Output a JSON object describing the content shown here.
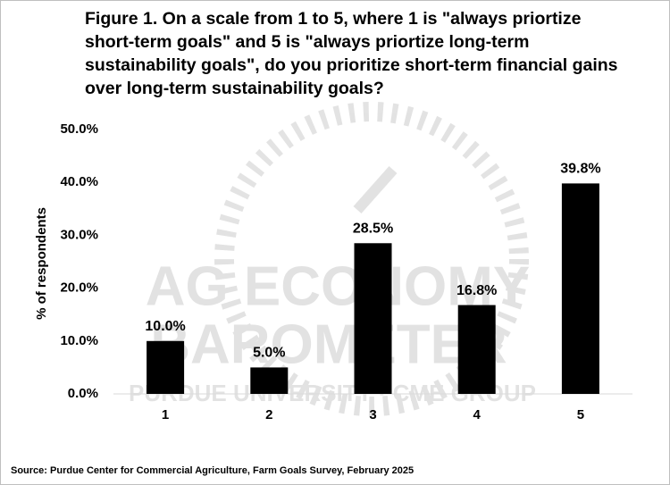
{
  "chart_data": {
    "type": "bar",
    "title": [
      "Figure 1. On a scale from 1 to 5, where 1 is \"always priortize",
      "short-term goals\" and 5 is \"always priortize long-term",
      "sustainability goals\", do you prioritize short-term financial gains",
      "over long-term sustainability goals?"
    ],
    "y_label": "% of respondents",
    "categories": [
      "1",
      "2",
      "3",
      "4",
      "5"
    ],
    "values": [
      10.0,
      5.0,
      28.5,
      16.8,
      39.8
    ],
    "value_labels": [
      "10.0%",
      "5.0%",
      "28.5%",
      "16.8%",
      "39.8%"
    ],
    "color": "#000000",
    "ylim": [
      0,
      50
    ],
    "yticks": [
      {
        "value": 0,
        "label": "0.0%"
      },
      {
        "value": 10,
        "label": "10.0%"
      },
      {
        "value": 20,
        "label": "20.0%"
      },
      {
        "value": 30,
        "label": "30.0%"
      },
      {
        "value": 40,
        "label": "40.0%"
      },
      {
        "value": 50,
        "label": "50.0%"
      }
    ],
    "grid": false,
    "watermark": [
      "AG ECONOMY",
      "BAROMETER",
      "PURDUE UNIVERSITY · CME GROUP"
    ],
    "source": "Source: Purdue Center for Commercial Agriculture, Farm Goals Survey, February 2025"
  }
}
